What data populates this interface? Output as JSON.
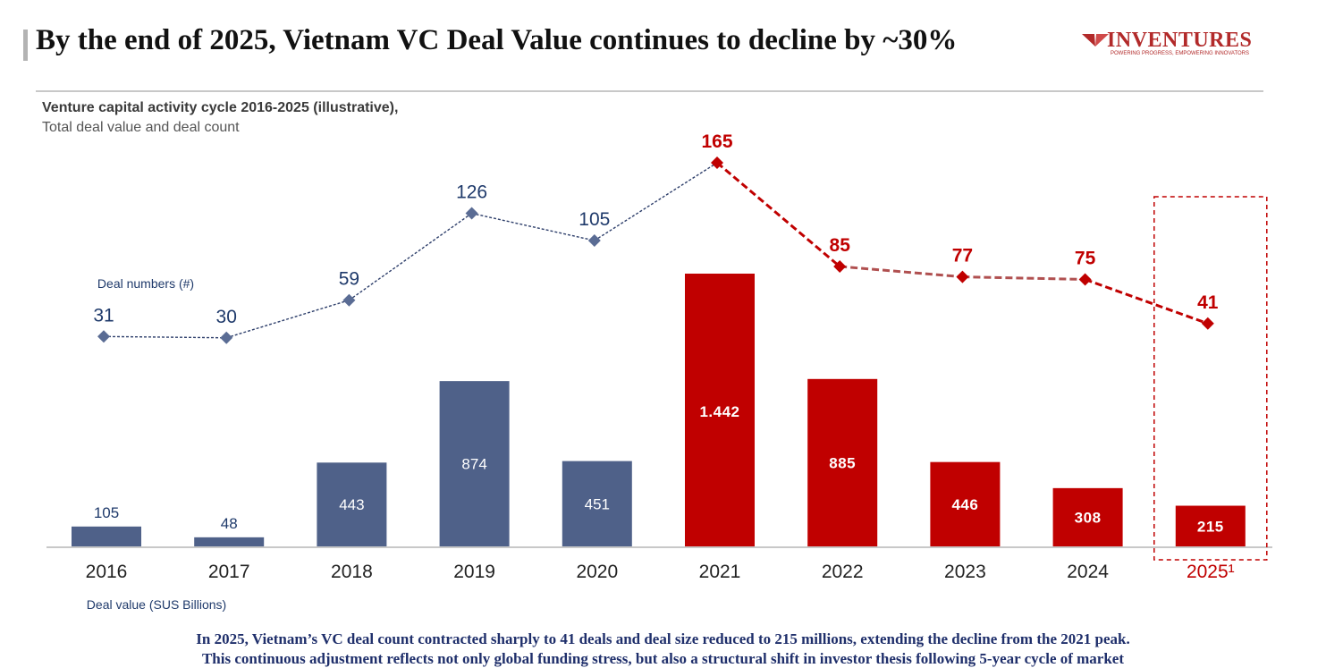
{
  "header": {
    "title": "By the end of 2025, Vietnam VC Deal Value continues to decline by ~30%"
  },
  "logo": {
    "name": "INVENTURES",
    "tagline": "POWERING PROGRESS, EMPOWERING INNOVATORS"
  },
  "subtitle": {
    "main": "Venture capital activity cycle 2016-2025 (illustrative),",
    "secondary": "Total deal value and deal count"
  },
  "colors": {
    "blue": "#4f6189",
    "red": "#c00000",
    "line_blue": "#2e3f6b",
    "text_blue": "#1f3a6b",
    "red_line_mid": "#b05050"
  },
  "chart_data": {
    "type": "bar",
    "title": "Venture capital activity cycle 2016-2025 (illustrative)",
    "categories": [
      "2016",
      "2017",
      "2018",
      "2019",
      "2020",
      "2021",
      "2022",
      "2023",
      "2024",
      "2025¹"
    ],
    "series": [
      {
        "name": "Deal value (SUS Billions)",
        "type": "bar",
        "values": [
          105,
          48,
          443,
          874,
          451,
          1442,
          885,
          446,
          308,
          215
        ],
        "labels": [
          "105",
          "48",
          "443",
          "874",
          "451",
          "1.442",
          "885",
          "446",
          "308",
          "215"
        ]
      },
      {
        "name": "Deal numbers (#)",
        "type": "line",
        "values": [
          31,
          30,
          59,
          126,
          105,
          165,
          85,
          77,
          75,
          41
        ],
        "labels": [
          "31",
          "30",
          "59",
          "126",
          "105",
          "165",
          "85",
          "77",
          "75",
          "41"
        ]
      }
    ],
    "highlight_from_index": 5,
    "highlight_box_index": 9,
    "xlabel": "Deal value (SUS Billions)",
    "line_label": "Deal numbers (#)",
    "ylim_value": [
      0,
      1442
    ],
    "ylim_count": [
      0,
      165
    ]
  },
  "footer": {
    "line1": "In 2025, Vietnam’s VC deal count contracted sharply to 41 deals and deal size reduced to 215 millions, extending the decline from the 2021 peak.",
    "line2": "This continuous adjustment reflects not only global funding stress, but also a structural shift in investor thesis following 5-year cycle of market"
  }
}
